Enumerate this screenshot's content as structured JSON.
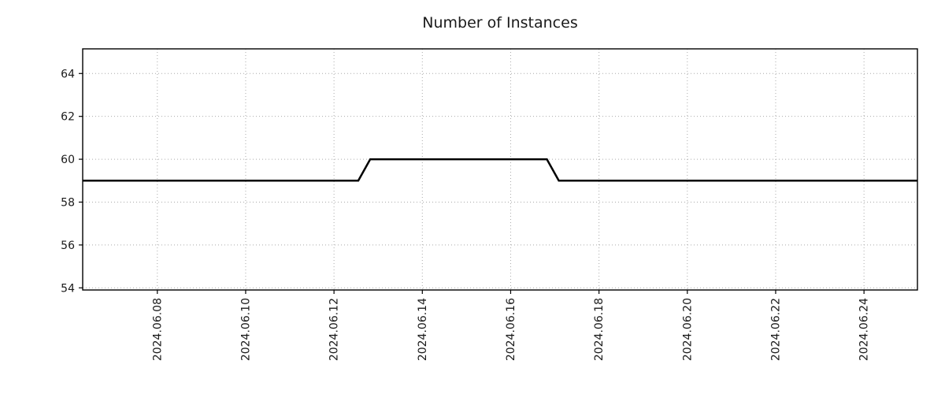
{
  "chart_data": {
    "type": "line",
    "title": "Number of Instances",
    "xlabel": "",
    "ylabel": "",
    "legend": "none",
    "grid": true,
    "grid_style": "dotted",
    "x_unit": "date (day of 2024.06)",
    "xlim": [
      6.31,
      25.21
    ],
    "ylim": [
      53.9,
      65.15
    ],
    "x_ticks": [
      {
        "value": 8,
        "label": "2024.06.08"
      },
      {
        "value": 10,
        "label": "2024.06.10"
      },
      {
        "value": 12,
        "label": "2024.06.12"
      },
      {
        "value": 14,
        "label": "2024.06.14"
      },
      {
        "value": 16,
        "label": "2024.06.16"
      },
      {
        "value": 18,
        "label": "2024.06.18"
      },
      {
        "value": 20,
        "label": "2024.06.20"
      },
      {
        "value": 22,
        "label": "2024.06.22"
      },
      {
        "value": 24,
        "label": "2024.06.24"
      }
    ],
    "y_ticks": [
      {
        "value": 54,
        "label": "54"
      },
      {
        "value": 56,
        "label": "56"
      },
      {
        "value": 58,
        "label": "58"
      },
      {
        "value": 60,
        "label": "60"
      },
      {
        "value": 62,
        "label": "62"
      },
      {
        "value": 64,
        "label": "64"
      }
    ],
    "series": [
      {
        "name": "instances",
        "points": [
          {
            "x": 6.31,
            "y": 59
          },
          {
            "x": 12.55,
            "y": 59
          },
          {
            "x": 12.82,
            "y": 60
          },
          {
            "x": 16.82,
            "y": 60
          },
          {
            "x": 17.09,
            "y": 59
          },
          {
            "x": 25.21,
            "y": 59
          }
        ]
      }
    ],
    "colors": {
      "line": "#000000",
      "grid": "#aaaaaa",
      "frame": "#000000",
      "tick": "#000000",
      "background": "#ffffff",
      "text": "#1a1a1a"
    },
    "line_width": 2.5
  }
}
